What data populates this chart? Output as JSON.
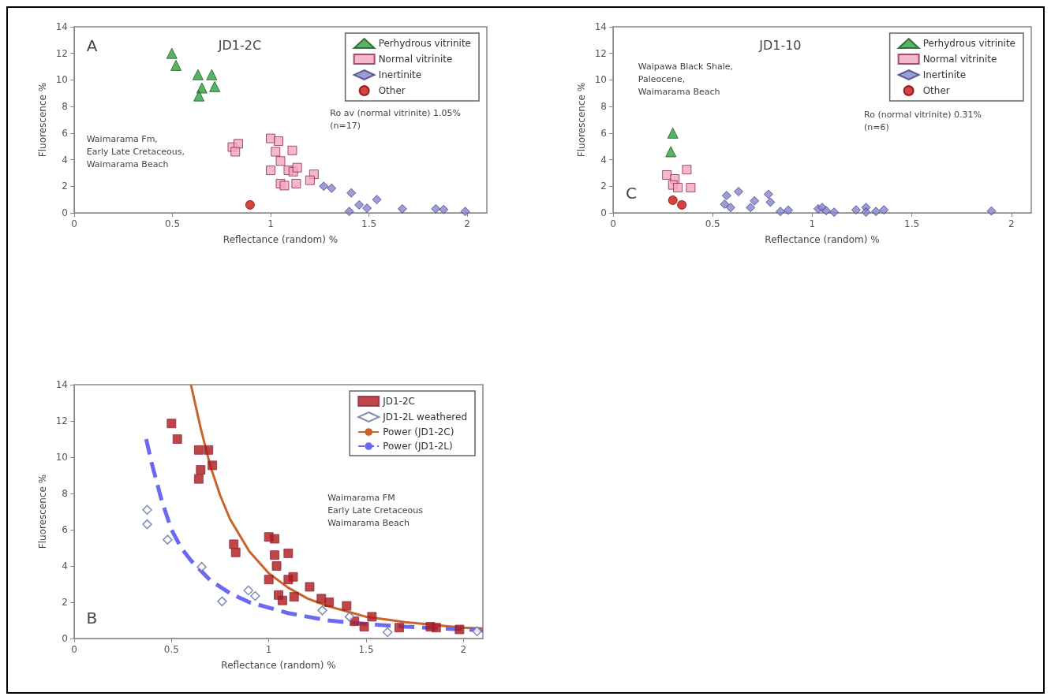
{
  "chart_data": [
    {
      "type": "scatter",
      "title": "JD1-2C",
      "xlabel": "Reflectance (random) %",
      "ylabel": "Fluorescence %",
      "xlim": [
        0,
        2.1
      ],
      "xticks": [
        0,
        0.5,
        1,
        1.5,
        2
      ],
      "ylim": [
        0,
        14
      ],
      "yticks": [
        0,
        2,
        4,
        6,
        8,
        10,
        12,
        14
      ],
      "grid": false,
      "legend": "top right",
      "annotations": [
        "A",
        "Ro av (normal vitrinite) 1.05%\n(n=17)",
        "Waimarama Fm,\nEarly Late Cretaceous,\nWaimarama Beach"
      ],
      "series": [
        {
          "name": "Perhydrous vitrinite",
          "color": "#2ea043",
          "marker": "triangle",
          "x": [
            0.497,
            0.518,
            0.63,
            0.7,
            0.65,
            0.715,
            0.635
          ],
          "values": [
            12.0,
            11.1,
            10.4,
            10.4,
            9.4,
            9.5,
            8.8
          ]
        },
        {
          "name": "Normal vitrinite",
          "color": "#f4a7bf",
          "marker": "square",
          "x": [
            0.805,
            0.835,
            0.82,
            1.0,
            1.04,
            1.025,
            1.11,
            1.05,
            1.0,
            1.09,
            1.115,
            1.135,
            1.05,
            1.07,
            1.13,
            1.22,
            1.2
          ],
          "values": [
            4.95,
            5.2,
            4.6,
            5.6,
            5.4,
            4.6,
            4.7,
            3.9,
            3.2,
            3.2,
            3.1,
            3.4,
            2.2,
            2.05,
            2.2,
            2.9,
            2.45
          ]
        },
        {
          "name": "Inertinite",
          "color": "#8585cc",
          "marker": "diamond",
          "x": [
            1.27,
            1.31,
            1.41,
            1.45,
            1.49,
            1.54,
            1.4,
            1.67,
            1.84,
            1.88,
            1.99
          ],
          "values": [
            2.0,
            1.85,
            1.5,
            0.6,
            0.35,
            1.0,
            0.1,
            0.3,
            0.3,
            0.25,
            0.1
          ]
        },
        {
          "name": "Other",
          "color": "#cc1111",
          "marker": "circle",
          "x": [
            0.895
          ],
          "values": [
            0.6
          ]
        }
      ]
    },
    {
      "type": "scatter",
      "title": "JD1-10",
      "xlabel": "Reflectance (random) %",
      "ylabel": "Fluorescence %",
      "xlim": [
        0,
        2.1
      ],
      "xticks": [
        0,
        0.5,
        1,
        1.5,
        2
      ],
      "ylim": [
        0,
        14
      ],
      "yticks": [
        0,
        2,
        4,
        6,
        8,
        10,
        12,
        14
      ],
      "grid": false,
      "legend": "top right",
      "annotations": [
        "C",
        "Waipawa Black Shale,\nPaleocene,\nWaimarama Beach",
        "Ro (normal vitrinite) 0.31%\n(n=6)"
      ],
      "series": [
        {
          "name": "Perhydrous vitrinite",
          "color": "#2ea043",
          "marker": "triangle",
          "x": [
            0.3,
            0.29
          ],
          "values": [
            6.0,
            4.6
          ]
        },
        {
          "name": "Normal vitrinite",
          "color": "#f4a7bf",
          "marker": "square",
          "x": [
            0.27,
            0.31,
            0.3,
            0.325,
            0.37,
            0.39
          ],
          "values": [
            2.85,
            2.55,
            2.1,
            1.9,
            3.25,
            1.9
          ]
        },
        {
          "name": "Inertinite",
          "color": "#8585cc",
          "marker": "diamond",
          "x": [
            0.57,
            0.63,
            0.56,
            0.59,
            0.71,
            0.69,
            0.78,
            0.79,
            0.84,
            0.88,
            1.03,
            1.05,
            1.07,
            1.11,
            1.22,
            1.27,
            1.27,
            1.32,
            1.36,
            1.9
          ],
          "values": [
            1.3,
            1.6,
            0.65,
            0.4,
            0.9,
            0.4,
            1.4,
            0.8,
            0.1,
            0.2,
            0.3,
            0.4,
            0.17,
            0.05,
            0.22,
            0.4,
            0.05,
            0.1,
            0.22,
            0.14
          ]
        },
        {
          "name": "Other",
          "color": "#cc1111",
          "marker": "circle",
          "x": [
            0.3,
            0.345
          ],
          "values": [
            0.95,
            0.6
          ]
        }
      ]
    },
    {
      "type": "scatter",
      "xlabel": "Reflectance (random) %",
      "ylabel": "Fluorescence %",
      "xlim": [
        0,
        2.1
      ],
      "xticks": [
        0,
        0.5,
        1,
        1.5,
        2
      ],
      "ylim": [
        0,
        14
      ],
      "yticks": [
        0,
        2,
        4,
        6,
        8,
        10,
        12,
        14
      ],
      "grid": false,
      "legend": "top right",
      "annotations": [
        "B",
        "Waimarama FM\nEarly Late Cretaceous\nWaimarama Beach"
      ],
      "series": [
        {
          "name": "JD1-2C",
          "color": "#b01818",
          "marker": "square",
          "x": [
            0.5,
            0.53,
            0.64,
            0.69,
            0.65,
            0.64,
            0.71,
            0.82,
            0.83,
            1.0,
            1.03,
            1.03,
            1.04,
            1.1,
            1.0,
            1.1,
            1.125,
            1.05,
            1.07,
            1.13,
            1.21,
            1.27,
            1.31,
            1.4,
            1.44,
            1.49,
            1.53,
            1.67,
            1.83,
            1.86,
            1.98
          ],
          "values": [
            11.86,
            11.0,
            10.4,
            10.4,
            9.3,
            8.8,
            9.55,
            5.2,
            4.75,
            5.6,
            5.5,
            4.6,
            4.0,
            4.7,
            3.25,
            3.25,
            3.4,
            2.4,
            2.1,
            2.3,
            2.85,
            2.2,
            2.0,
            1.8,
            0.95,
            0.65,
            1.2,
            0.6,
            0.65,
            0.6,
            0.5
          ]
        },
        {
          "name": "JD1-2L weathered",
          "color": "#6070a0",
          "marker": "diamond",
          "x": [
            0.375,
            0.375,
            0.48,
            0.655,
            0.76,
            0.895,
            0.93,
            1.275,
            1.415,
            1.61,
            2.07
          ],
          "values": [
            7.1,
            6.3,
            5.45,
            3.95,
            2.05,
            2.65,
            2.35,
            1.55,
            1.2,
            0.35,
            0.4
          ]
        },
        {
          "name": "Power (JD1-2C)",
          "type": "line",
          "color": "#c8642a",
          "marker": "none",
          "line_style": "solid",
          "x": [
            0.6,
            0.65,
            0.7,
            0.75,
            0.8,
            0.9,
            1.0,
            1.1,
            1.2,
            1.3,
            1.4,
            1.5,
            1.6,
            1.7,
            1.8,
            1.9,
            2.0,
            2.1
          ],
          "values": [
            14,
            11.6,
            9.5,
            7.9,
            6.6,
            4.8,
            3.6,
            2.8,
            2.2,
            1.8,
            1.5,
            1.2,
            1.05,
            0.9,
            0.8,
            0.7,
            0.6,
            0.55
          ]
        },
        {
          "name": "Power (JD1-2L)",
          "type": "line",
          "color": "#6a6af0",
          "marker": "none",
          "line_style": "dashed",
          "x": [
            0.37,
            0.4,
            0.45,
            0.5,
            0.55,
            0.6,
            0.7,
            0.8,
            0.9,
            1.0,
            1.1,
            1.2,
            1.3,
            1.5,
            1.7,
            1.9,
            2.1
          ],
          "values": [
            11,
            9.6,
            7.6,
            6.0,
            5.0,
            4.3,
            3.2,
            2.5,
            2.0,
            1.7,
            1.4,
            1.2,
            1.0,
            0.8,
            0.65,
            0.55,
            0.45
          ]
        }
      ]
    }
  ]
}
